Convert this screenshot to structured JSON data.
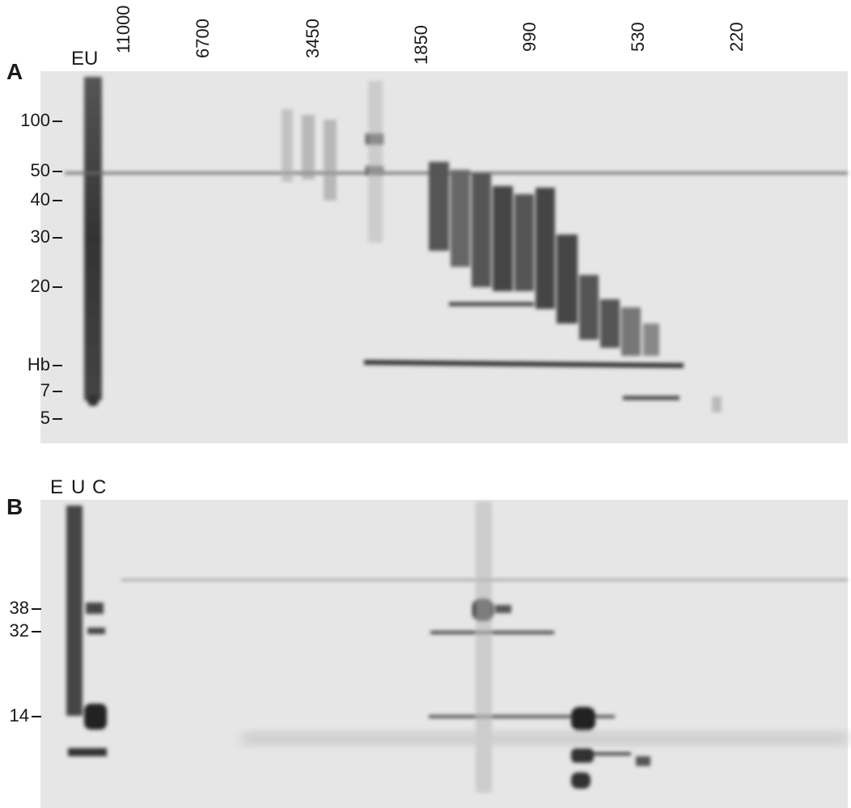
{
  "top_labels": [
    "11000",
    "6700",
    "3450",
    "1850",
    "990",
    "530",
    "220"
  ],
  "panel_a": {
    "label": "A",
    "lane_label": "EU",
    "markers": [
      "100",
      "50",
      "40",
      "30",
      "20",
      "Hb",
      "7",
      "5"
    ]
  },
  "panel_b": {
    "label": "B",
    "lane_labels": [
      "E",
      "U",
      "C"
    ],
    "markers": [
      "38",
      "32",
      "14"
    ]
  }
}
